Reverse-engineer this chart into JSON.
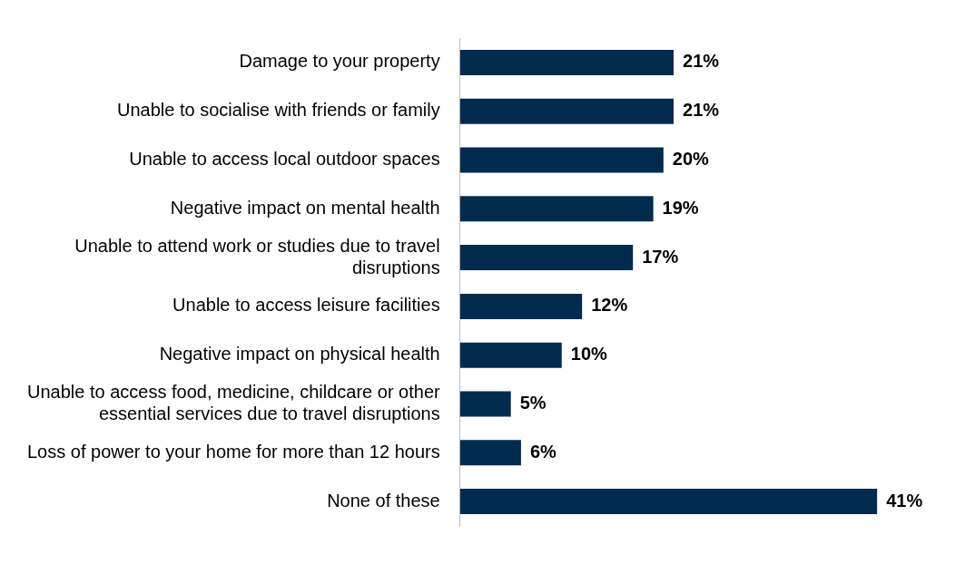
{
  "chart_data": {
    "type": "bar",
    "orientation": "horizontal",
    "categories": [
      "Damage to your property",
      "Unable to socialise with friends or family",
      "Unable to access local outdoor spaces",
      "Negative impact on mental health",
      "Unable to attend work or studies due to travel disruptions",
      "Unable to access leisure facilities",
      "Negative impact on physical health",
      "Unable to access food, medicine, childcare or other essential services due to travel disruptions",
      "Loss of power to your home for more than 12 hours",
      "None of these"
    ],
    "values": [
      21,
      21,
      20,
      19,
      17,
      12,
      10,
      5,
      6,
      41
    ],
    "value_labels": [
      "21%",
      "21%",
      "20%",
      "19%",
      "17%",
      "12%",
      "10%",
      "5%",
      "6%",
      "41%"
    ],
    "color": "#002b4f",
    "legend": false
  }
}
